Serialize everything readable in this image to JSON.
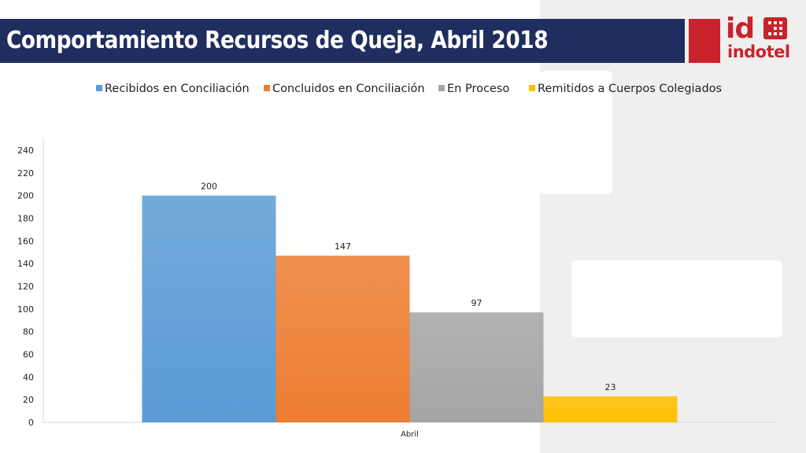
{
  "title": "Comportamiento Recursos de Queja, Abril 2018",
  "logo": {
    "id_text": "id",
    "word": "indotel",
    "color": "#c8232c"
  },
  "colors": {
    "title_bar": "#1f2e5e",
    "accent_red": "#c8232c"
  },
  "legend": [
    {
      "label": "Recibidos en Conciliación",
      "color": "#5b9bd5"
    },
    {
      "label": "Concluidos en Conciliación",
      "color": "#ed7d31"
    },
    {
      "label": "En Proceso",
      "color": "#a5a5a5"
    },
    {
      "label": "Remitidos a Cuerpos Colegiados",
      "color": "#ffc000"
    }
  ],
  "chart_data": {
    "type": "bar",
    "categories": [
      "Abril"
    ],
    "series": [
      {
        "name": "Recibidos en Conciliación",
        "values": [
          200
        ],
        "color": "#5b9bd5"
      },
      {
        "name": "Concluidos en Conciliación",
        "values": [
          147
        ],
        "color": "#ed7d31"
      },
      {
        "name": "En Proceso",
        "values": [
          97
        ],
        "color": "#a5a5a5"
      },
      {
        "name": "Remitidos a Cuerpos Colegiados",
        "values": [
          23
        ],
        "color": "#ffc000"
      }
    ],
    "ylim": [
      0,
      240
    ],
    "yticks": [
      0,
      20,
      40,
      60,
      80,
      100,
      120,
      140,
      160,
      180,
      200,
      220,
      240
    ],
    "data_labels": [
      "200",
      "147",
      "97",
      "23"
    ],
    "legend_position": "top",
    "grid": false
  }
}
